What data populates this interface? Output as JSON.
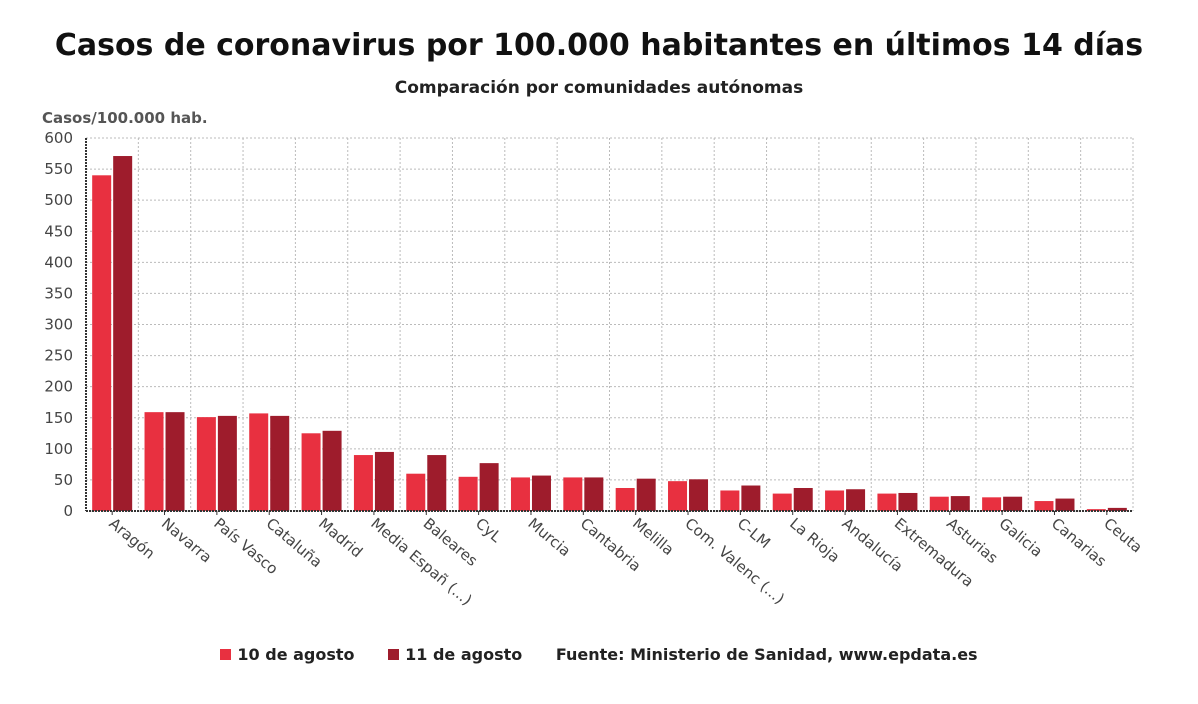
{
  "chart_data": {
    "type": "bar",
    "title": "Casos de coronavirus por 100.000 habitantes en últimos 14 días",
    "subtitle": "Comparación por comunidades autónomas",
    "ylabel": "Casos/100.000 hab.",
    "xlabel": "",
    "ylim": [
      0,
      600
    ],
    "yticks": [
      0,
      50,
      100,
      150,
      200,
      250,
      300,
      350,
      400,
      450,
      500,
      550,
      600
    ],
    "grid": true,
    "legend_position": "bottom",
    "categories": [
      "Aragón",
      "Navarra",
      "País Vasco",
      "Cataluña",
      "Madrid",
      "Media Españ (...)",
      "Baleares",
      "CyL",
      "Murcia",
      "Cantabria",
      "Melilla",
      "Com. Valenc (...)",
      "C-LM",
      "La Rioja",
      "Andalucía",
      "Extremadura",
      "Asturias",
      "Galicia",
      "Canarias",
      "Ceuta"
    ],
    "series": [
      {
        "name": "10 de agosto",
        "color": "#e83040",
        "values": [
          540,
          159,
          151,
          157,
          125,
          90,
          60,
          55,
          54,
          54,
          37,
          48,
          33,
          28,
          33,
          28,
          23,
          22,
          16,
          3
        ]
      },
      {
        "name": "11 de agosto",
        "color": "#9e1c2c",
        "values": [
          571,
          159,
          153,
          153,
          129,
          95,
          90,
          77,
          57,
          54,
          52,
          51,
          41,
          37,
          35,
          29,
          24,
          23,
          20,
          5
        ]
      }
    ],
    "source": "Fuente: Ministerio de Sanidad, www.epdata.es"
  }
}
